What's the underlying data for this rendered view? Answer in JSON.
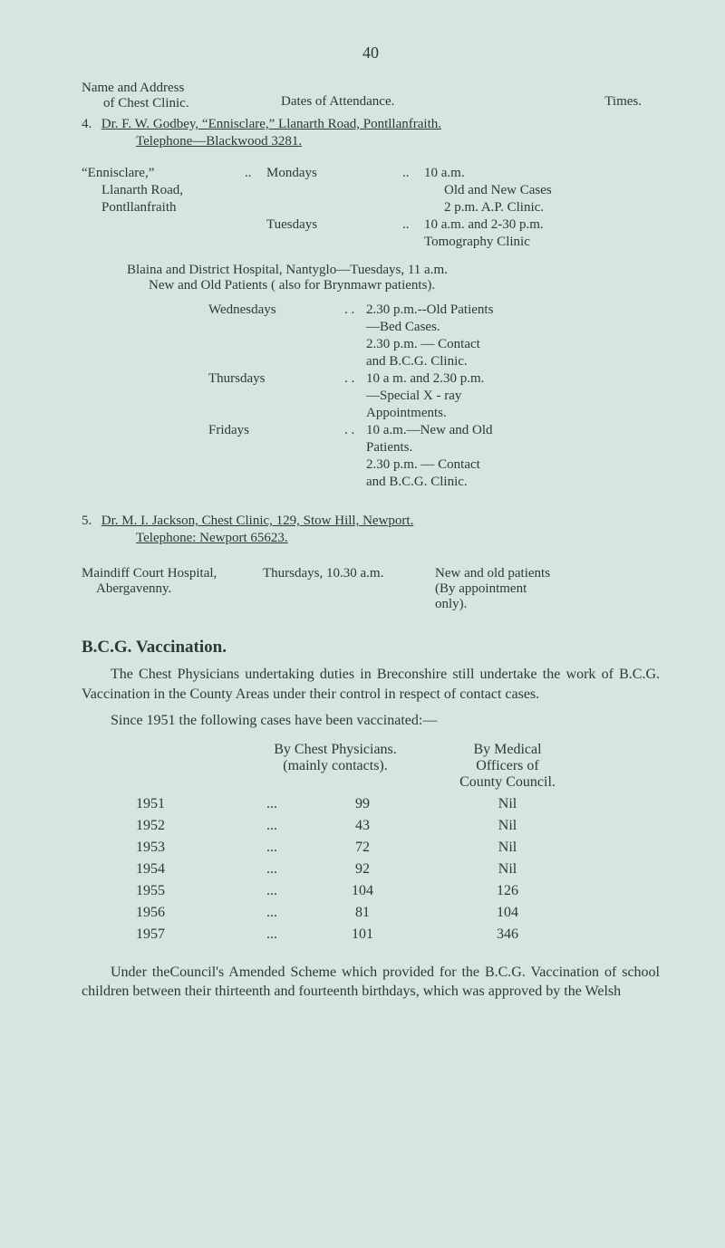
{
  "page_number": "40",
  "header": {
    "col_a_line1": "Name and Address",
    "col_a_line2": "of Chest Clinic.",
    "col_b": "Dates of Attendance.",
    "col_c": "Times."
  },
  "clinic4": {
    "num": "4.",
    "line": "Dr. F. W. Godbey, “Ennisclare,” Llanarth Road, Pontllanfraith.",
    "tele": "Telephone—Blackwood 3281."
  },
  "ennisclare": {
    "loc1": "“Ennisclare,”",
    "loc2": "Llanarth Road,",
    "loc3": "Pontllanfraith",
    "dots": "..",
    "day1": "Mondays",
    "day2": "Tuesdays",
    "time1a": "10 a.m.",
    "time1b": "Old and New Cases",
    "time1c": "2 p.m. A.P. Clinic.",
    "time2a": "10 a.m. and 2-30 p.m.",
    "time2b": "Tomography Clinic"
  },
  "blaina": {
    "line1": "Blaina and District Hospital, Nantyglo—Tuesdays, 11 a.m.",
    "line2": "New and Old Patients ( also for Brynmawr patients)."
  },
  "inner": {
    "dots": ". .",
    "wed": "Wednesdays",
    "wed_t1": "2.30 p.m.--Old Patients",
    "wed_t2": "—Bed Cases.",
    "wed_t3": "2.30 p.m. — Contact",
    "wed_t4": "and B.C.G. Clinic.",
    "thu": "Thursdays",
    "thu_t1": "10 a m. and 2.30 p.m.",
    "thu_t2": "—Special   X - ray",
    "thu_t3": "Appointments.",
    "fri": "Fridays",
    "fri_t1": "10 a.m.—New and Old",
    "fri_t2": "Patients.",
    "fri_t3": "2.30 p.m. — Contact",
    "fri_t4": "and B.C.G. Clinic."
  },
  "clinic5": {
    "num": "5.",
    "line": "Dr. M. I. Jackson, Chest Clinic, 129, Stow Hill, Newport.",
    "tele": "Telephone: Newport 65623."
  },
  "maindiff": {
    "left1": "Maindiff Court Hospital,",
    "left2": "Abergavenny.",
    "mid": "Thursdays, 10.30 a.m.",
    "right1": "New and old patients",
    "right2": "(By appointment",
    "right3": "only)."
  },
  "bcg_heading": "B.C.G. Vaccination.",
  "para1": "The Chest Physicians undertaking duties in Breconshire still undertake the work of B.C.G. Vaccination in the County Areas under their control in respect of contact cases.",
  "para2": "Since 1951 the following cases have been vaccinated:—",
  "table": {
    "head_c2a": "By Chest Physicians.",
    "head_c2b": "(mainly contacts).",
    "head_c3a": "By Medical",
    "head_c3b": "Officers of",
    "head_c3c": "County Council.",
    "rows": [
      {
        "year": "1951",
        "dots": "...",
        "chest": "99",
        "med": "Nil"
      },
      {
        "year": "1952",
        "dots": "...",
        "chest": "43",
        "med": "Nil"
      },
      {
        "year": "1953",
        "dots": "...",
        "chest": "72",
        "med": "Nil"
      },
      {
        "year": "1954",
        "dots": "...",
        "chest": "92",
        "med": "Nil"
      },
      {
        "year": "1955",
        "dots": "...",
        "chest": "104",
        "med": "126"
      },
      {
        "year": "1956",
        "dots": "...",
        "chest": "81",
        "med": "104"
      },
      {
        "year": "1957",
        "dots": "...",
        "chest": "101",
        "med": "346"
      }
    ]
  },
  "footer": "Under theCouncil's Amended Scheme which provided for the B.C.G. Vaccination of school children between their thirteenth and fourteenth birthdays, which was approved by the Welsh"
}
